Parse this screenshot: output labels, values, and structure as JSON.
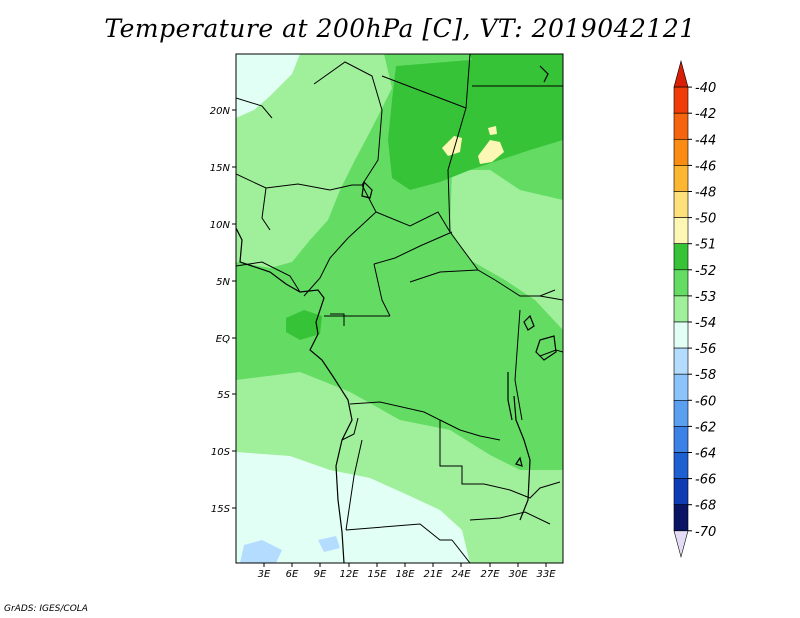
{
  "title": "Temperature at 200hPa [C], VT: 2019042121",
  "credit": "GrADS: IGES/COLA",
  "map": {
    "lat_labels": [
      "20N",
      "15N",
      "10N",
      "5N",
      "EQ",
      "5S",
      "10S",
      "15S"
    ],
    "lon_labels": [
      "3E",
      "6E",
      "9E",
      "12E",
      "15E",
      "18E",
      "21E",
      "24E",
      "27E",
      "30E",
      "33E"
    ]
  },
  "colorbar": {
    "labels": [
      "-40",
      "-42",
      "-44",
      "-46",
      "-48",
      "-50",
      "-51",
      "-52",
      "-53",
      "-54",
      "-56",
      "-58",
      "-60",
      "-62",
      "-64",
      "-66",
      "-68",
      "-70"
    ],
    "colors": [
      "#d81e05",
      "#f03c0a",
      "#f5640f",
      "#fa8c14",
      "#fcb632",
      "#fde07c",
      "#fdf7b5",
      "#37c337",
      "#64dc64",
      "#a0f09b",
      "#e1fff5",
      "#b4dcff",
      "#8cc3fa",
      "#5a9ff0",
      "#3c82e6",
      "#1e5fd2",
      "#0f3cb4",
      "#0a1464",
      "#e4dcf4"
    ]
  },
  "field_colors": {
    "minus_51": "#fdf7b5",
    "minus_52": "#37c337",
    "minus_53": "#64dc64",
    "minus_54": "#a0f09b",
    "minus_56": "#e1fff5",
    "minus_58": "#b4dcff"
  }
}
